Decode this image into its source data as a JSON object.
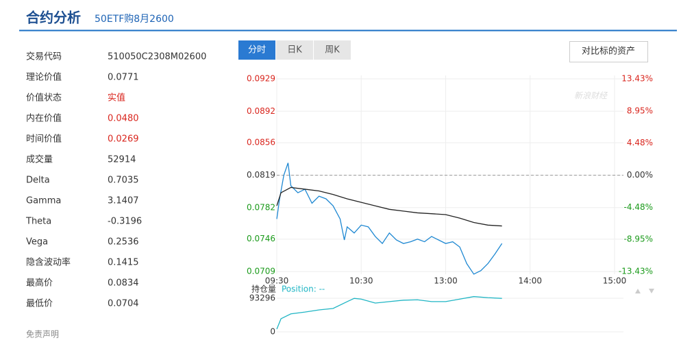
{
  "header": {
    "title": "合约分析",
    "subtitle": "50ETF购8月2600"
  },
  "info": {
    "rows": [
      {
        "label": "交易代码",
        "value": "510050C2308M02600",
        "color": "#333333"
      },
      {
        "label": "理论价值",
        "value": "0.0771",
        "color": "#333333"
      },
      {
        "label": "价值状态",
        "value": "实值",
        "color": "#d9251d"
      },
      {
        "label": "内在价值",
        "value": "0.0480",
        "color": "#d9251d"
      },
      {
        "label": "时间价值",
        "value": "0.0269",
        "color": "#d9251d"
      },
      {
        "label": "成交量",
        "value": "52914",
        "color": "#333333"
      },
      {
        "label": "Delta",
        "value": "0.7035",
        "color": "#333333"
      },
      {
        "label": "Gamma",
        "value": "3.1407",
        "color": "#333333"
      },
      {
        "label": "Theta",
        "value": "-0.3196",
        "color": "#333333"
      },
      {
        "label": "Vega",
        "value": "0.2536",
        "color": "#333333"
      },
      {
        "label": "隐含波动率",
        "value": "0.1415",
        "color": "#333333"
      },
      {
        "label": "最高价",
        "value": "0.0834",
        "color": "#333333"
      },
      {
        "label": "最低价",
        "value": "0.0704",
        "color": "#333333"
      }
    ]
  },
  "disclaimer": "免责声明",
  "tabs": [
    "分时",
    "日K",
    "周K"
  ],
  "active_tab": 0,
  "compare_button": "对比标的资产",
  "watermark": "新浪财经",
  "chart_data": [
    {
      "type": "line",
      "xlim": [
        0,
        240
      ],
      "xticks": [
        {
          "value": 0,
          "label": "09:30"
        },
        {
          "value": 60,
          "label": "10:30"
        },
        {
          "value": 120,
          "label": "13:00"
        },
        {
          "value": 180,
          "label": "14:00"
        },
        {
          "value": 240,
          "label": "15:00"
        }
      ],
      "ylim": [
        0.0709,
        0.0929
      ],
      "yticks": [
        0.0929,
        0.0892,
        0.0856,
        0.0819,
        0.0782,
        0.0746,
        0.0709
      ],
      "y2lim": [
        -13.43,
        13.43
      ],
      "y2ticks": [
        {
          "value": 13.43,
          "label": "13.43%"
        },
        {
          "value": 8.95,
          "label": "8.95%"
        },
        {
          "value": 4.48,
          "label": "4.48%"
        },
        {
          "value": 0,
          "label": "0.00%"
        },
        {
          "value": -4.48,
          "label": "-4.48%"
        },
        {
          "value": -8.95,
          "label": "-8.95%"
        },
        {
          "value": -13.43,
          "label": "-13.43%"
        }
      ],
      "up_color": "#d9251d",
      "down_color": "#1a9a1a",
      "grid": true,
      "series": [
        {
          "color": "#1e88d2",
          "x": [
            0,
            2,
            5,
            8,
            10,
            15,
            20,
            25,
            30,
            35,
            40,
            45,
            48,
            50,
            55,
            60,
            65,
            70,
            75,
            80,
            85,
            90,
            95,
            100,
            105,
            110,
            115,
            120,
            125,
            130,
            135,
            140,
            145,
            150,
            155,
            160
          ],
          "values": [
            0.0769,
            0.0792,
            0.0819,
            0.0833,
            0.0807,
            0.0799,
            0.0803,
            0.0787,
            0.0795,
            0.0792,
            0.0784,
            0.0769,
            0.0745,
            0.076,
            0.0753,
            0.0762,
            0.076,
            0.0749,
            0.0741,
            0.0753,
            0.0745,
            0.0741,
            0.0743,
            0.0746,
            0.0743,
            0.0749,
            0.0745,
            0.0741,
            0.0743,
            0.0737,
            0.0718,
            0.0706,
            0.071,
            0.0718,
            0.0729,
            0.0741
          ]
        },
        {
          "color": "#222222",
          "x": [
            0,
            3,
            10,
            20,
            30,
            40,
            50,
            60,
            70,
            80,
            90,
            100,
            110,
            120,
            130,
            140,
            150,
            160
          ],
          "values": [
            0.0784,
            0.0799,
            0.0805,
            0.0803,
            0.0801,
            0.0797,
            0.0792,
            0.0788,
            0.0784,
            0.078,
            0.0778,
            0.0776,
            0.0775,
            0.0774,
            0.077,
            0.0765,
            0.0762,
            0.0761
          ]
        }
      ]
    },
    {
      "type": "line",
      "title": "持仓量",
      "legend": "Position: --",
      "xlim": [
        0,
        240
      ],
      "ylim": [
        0,
        100000
      ],
      "yticks": [
        93296,
        0
      ],
      "grid": true,
      "series": [
        {
          "color": "#1fb5c4",
          "x": [
            0,
            3,
            10,
            20,
            30,
            40,
            50,
            55,
            60,
            70,
            80,
            90,
            100,
            110,
            120,
            130,
            140,
            150,
            160
          ],
          "values": [
            7600,
            36500,
            50000,
            55000,
            61000,
            65000,
            84000,
            93000,
            91000,
            80000,
            84000,
            88000,
            89000,
            84000,
            84000,
            91000,
            98000,
            95000,
            93000
          ]
        }
      ]
    }
  ]
}
